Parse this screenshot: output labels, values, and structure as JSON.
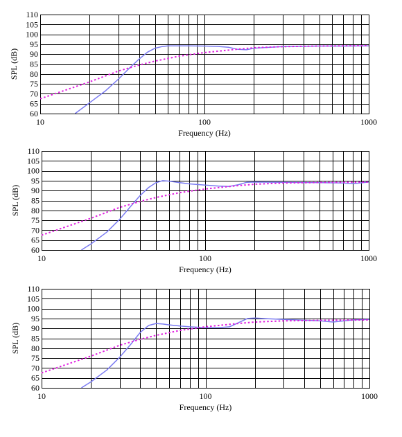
{
  "chart_data": [
    {
      "type": "line",
      "xscale": "log",
      "xlim": [
        10,
        1000
      ],
      "ylim": [
        60,
        110
      ],
      "xlabel": "Frequency (Hz)",
      "ylabel": "SPL (dB)",
      "xticks": [
        "10",
        "100",
        "1000"
      ],
      "yticks": [
        "60",
        "65",
        "70",
        "75",
        "80",
        "85",
        "90",
        "95",
        "100",
        "105",
        "110"
      ],
      "grid": true,
      "series": [
        {
          "style": "solid",
          "color": "#7b7bf2",
          "x": [
            16.3,
            20,
            25,
            30,
            35,
            40,
            45,
            50,
            55,
            60,
            70,
            80,
            100,
            120,
            140,
            160,
            180,
            200,
            300,
            500,
            700,
            1000
          ],
          "y": [
            60,
            65.5,
            71.5,
            77.5,
            83,
            87.5,
            91,
            93,
            93.8,
            94.2,
            94.2,
            94.2,
            94.1,
            93.9,
            93.5,
            92.4,
            92.2,
            93,
            93.8,
            94.1,
            94.1,
            94.2
          ]
        },
        {
          "style": "dotted",
          "color": "#e020e0",
          "x": [
            10,
            20,
            30,
            40,
            50,
            70,
            100,
            150,
            200,
            300,
            500,
            1000
          ],
          "y": [
            67.5,
            76,
            81.5,
            84.5,
            86.5,
            89,
            90.8,
            92.3,
            93.2,
            93.8,
            94.1,
            94.3
          ]
        }
      ]
    },
    {
      "type": "line",
      "xscale": "log",
      "xlim": [
        10,
        1000
      ],
      "ylim": [
        60,
        110
      ],
      "xlabel": "Frequency (Hz)",
      "ylabel": "SPL (dB)",
      "xticks": [
        "10",
        "100",
        "1000"
      ],
      "yticks": [
        "60",
        "65",
        "70",
        "75",
        "80",
        "85",
        "90",
        "95",
        "100",
        "105",
        "110"
      ],
      "grid": true,
      "series": [
        {
          "style": "solid",
          "color": "#7b7bf2",
          "x": [
            17.5,
            20,
            25,
            30,
            35,
            40,
            45,
            50,
            55,
            60,
            70,
            80,
            100,
            120,
            140,
            160,
            180,
            200,
            300,
            500,
            700,
            800,
            1000
          ],
          "y": [
            60,
            63,
            69,
            75.5,
            82,
            87.5,
            91.5,
            94,
            95,
            94.8,
            94,
            93.4,
            92.8,
            92.3,
            92.1,
            93,
            94.2,
            94.3,
            94.2,
            94,
            93.8,
            93.5,
            94.3
          ]
        },
        {
          "style": "dotted",
          "color": "#e020e0",
          "x": [
            10,
            20,
            30,
            40,
            50,
            70,
            100,
            150,
            200,
            300,
            500,
            1000
          ],
          "y": [
            67.5,
            76,
            81.5,
            84.5,
            86.5,
            89,
            90.8,
            92.3,
            93.2,
            93.8,
            94.1,
            94.3
          ]
        }
      ]
    },
    {
      "type": "line",
      "xscale": "log",
      "xlim": [
        10,
        1000
      ],
      "ylim": [
        60,
        110
      ],
      "xlabel": "Frequency (Hz)",
      "ylabel": "SPL (dB)",
      "xticks": [
        "10",
        "100",
        "1000"
      ],
      "yticks": [
        "60",
        "65",
        "70",
        "75",
        "80",
        "85",
        "90",
        "95",
        "100",
        "105",
        "110"
      ],
      "grid": true,
      "series": [
        {
          "style": "solid",
          "color": "#7b7bf2",
          "x": [
            17.5,
            20,
            25,
            30,
            35,
            40,
            45,
            50,
            55,
            60,
            70,
            80,
            100,
            120,
            140,
            160,
            180,
            200,
            300,
            500,
            600,
            700,
            800,
            1000
          ],
          "y": [
            60,
            63,
            69,
            75.5,
            82,
            88,
            91.5,
            92.5,
            92.2,
            91.8,
            91.2,
            90.8,
            90.4,
            90.3,
            90.8,
            93,
            95,
            95.2,
            94.5,
            93.8,
            93.2,
            93.8,
            94.3,
            94.5
          ]
        },
        {
          "style": "dotted",
          "color": "#e020e0",
          "x": [
            10,
            20,
            30,
            40,
            50,
            70,
            100,
            150,
            200,
            300,
            500,
            1000
          ],
          "y": [
            67.5,
            76,
            81.5,
            84.5,
            86.5,
            89,
            90.8,
            92.3,
            93.2,
            93.8,
            94.1,
            94.3
          ]
        }
      ]
    }
  ]
}
